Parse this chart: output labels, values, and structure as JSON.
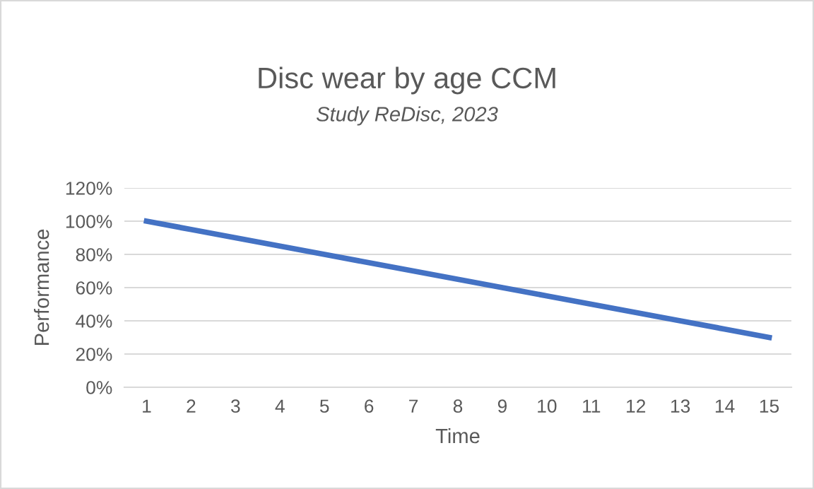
{
  "chart_data": {
    "type": "line",
    "title": "Disc wear by age CCM",
    "subtitle": "Study ReDisc, 2023",
    "xlabel": "Time",
    "ylabel": "Performance",
    "categories": [
      "1",
      "2",
      "3",
      "4",
      "5",
      "6",
      "7",
      "8",
      "9",
      "10",
      "11",
      "12",
      "13",
      "14",
      "15"
    ],
    "series": [
      {
        "color": "#4472c4",
        "values": [
          100,
          95,
          90,
          85,
          80,
          75,
          70,
          65,
          60,
          55,
          50,
          45,
          40,
          35,
          30
        ]
      }
    ],
    "ylim": [
      0,
      120
    ],
    "yticks": [
      {
        "value": 0,
        "label": "0%"
      },
      {
        "value": 20,
        "label": "20%"
      },
      {
        "value": 40,
        "label": "40%"
      },
      {
        "value": 60,
        "label": "60%"
      },
      {
        "value": 80,
        "label": "80%"
      },
      {
        "value": 100,
        "label": "100%"
      },
      {
        "value": 120,
        "label": "120%"
      }
    ],
    "grid": "y",
    "legend": false,
    "marker": "none",
    "line_style": "solid"
  }
}
